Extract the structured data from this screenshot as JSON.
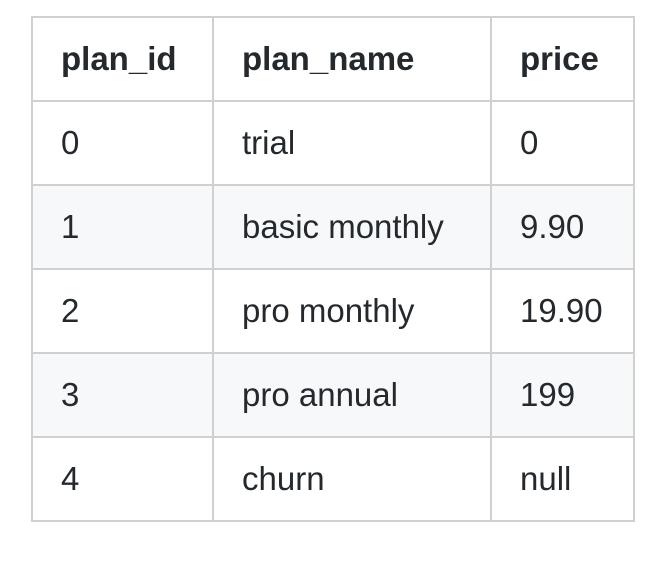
{
  "table": {
    "headers": [
      "plan_id",
      "plan_name",
      "price"
    ],
    "rows": [
      [
        "0",
        "trial",
        "0"
      ],
      [
        "1",
        "basic monthly",
        "9.90"
      ],
      [
        "2",
        "pro monthly",
        "19.90"
      ],
      [
        "3",
        "pro annual",
        "199"
      ],
      [
        "4",
        "churn",
        "null"
      ]
    ]
  }
}
